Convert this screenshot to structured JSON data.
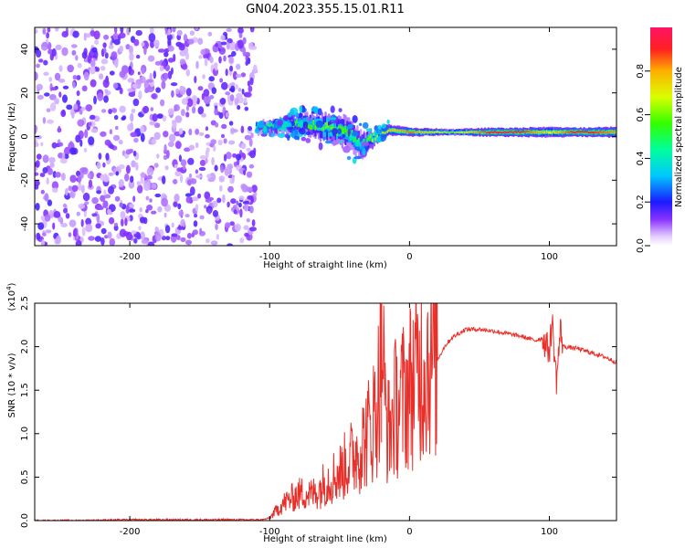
{
  "title": "GN04.2023.355.15.01.R11",
  "chart_data": [
    {
      "type": "heatmap",
      "name": "spectrogram",
      "xlabel": "Height of straight line (km)",
      "ylabel": "Frequency (Hz)",
      "xlim": [
        -268,
        148
      ],
      "ylim": [
        -50,
        50
      ],
      "xticks": [
        -200,
        -100,
        0,
        100
      ],
      "yticks": [
        -40,
        -20,
        0,
        20,
        40
      ],
      "grid": false,
      "noise_region_x": [
        -268,
        -110
      ],
      "signal_band": [
        {
          "x": -110,
          "f": 4,
          "width": 5,
          "amp": 0.45
        },
        {
          "x": -90,
          "f": 5,
          "width": 7,
          "amp": 0.5
        },
        {
          "x": -75,
          "f": 6,
          "width": 9,
          "amp": 0.55
        },
        {
          "x": -60,
          "f": 4,
          "width": 12,
          "amp": 0.6
        },
        {
          "x": -45,
          "f": 2,
          "width": 14,
          "amp": 0.55
        },
        {
          "x": -35,
          "f": -4,
          "width": 12,
          "amp": 0.45
        },
        {
          "x": -25,
          "f": 0,
          "width": 6,
          "amp": 0.7
        },
        {
          "x": -15,
          "f": 3,
          "width": 5,
          "amp": 0.75
        },
        {
          "x": 0,
          "f": 2,
          "width": 4,
          "amp": 0.85
        },
        {
          "x": 30,
          "f": 2,
          "width": 3,
          "amp": 0.6
        },
        {
          "x": 55,
          "f": 2,
          "width": 4,
          "amp": 0.9
        },
        {
          "x": 75,
          "f": 2,
          "width": 4,
          "amp": 0.95
        },
        {
          "x": 100,
          "f": 2,
          "width": 5,
          "amp": 0.7
        },
        {
          "x": 120,
          "f": 2,
          "width": 4,
          "amp": 0.95
        },
        {
          "x": 148,
          "f": 2,
          "width": 5,
          "amp": 0.8
        }
      ],
      "colorbar": {
        "label": "Normalized spectral amplitude",
        "range": [
          0,
          1
        ],
        "ticks": [
          "0.0",
          "0.2",
          "0.4",
          "0.6",
          "0.8"
        ]
      }
    },
    {
      "type": "line",
      "name": "snr",
      "xlabel": "Height of straight line (km)",
      "ylabel": "SNR (10 * v/v)",
      "y_multiplier": "(x10",
      "y_multiplier_exp": "4",
      "y_multiplier_close": ")",
      "xlim": [
        -268,
        148
      ],
      "ylim": [
        0,
        2.5
      ],
      "xticks": [
        -200,
        -100,
        0,
        100
      ],
      "yticks": [
        "0.0",
        "0.5",
        "1.0",
        "1.5",
        "2.0",
        "2.5"
      ],
      "series": [
        {
          "name": "SNR",
          "color": "#e8302b",
          "x": [
            -268,
            -240,
            -200,
            -160,
            -120,
            -105,
            -100,
            -95,
            -90,
            -85,
            -80,
            -75,
            -70,
            -65,
            -60,
            -55,
            -50,
            -45,
            -40,
            -35,
            -30,
            -25,
            -22,
            -20,
            -18,
            -15,
            -12,
            -10,
            -5,
            0,
            5,
            10,
            15,
            20,
            25,
            30,
            35,
            40,
            50,
            60,
            70,
            80,
            90,
            95,
            100,
            102,
            105,
            108,
            110,
            120,
            130,
            140,
            148
          ],
          "y": [
            0.0,
            0.0,
            0.01,
            0.01,
            0.01,
            0.01,
            0.03,
            0.12,
            0.2,
            0.25,
            0.3,
            0.32,
            0.3,
            0.35,
            0.45,
            0.5,
            0.55,
            0.65,
            0.75,
            0.85,
            1.0,
            1.2,
            1.5,
            2.5,
            1.4,
            1.0,
            1.2,
            1.3,
            1.4,
            1.55,
            1.7,
            1.8,
            1.9,
            1.85,
            2.0,
            2.1,
            2.15,
            2.2,
            2.2,
            2.18,
            2.15,
            2.12,
            2.07,
            2.1,
            1.95,
            2.3,
            1.6,
            2.2,
            2.0,
            1.98,
            1.93,
            1.88,
            1.82
          ]
        }
      ]
    }
  ]
}
